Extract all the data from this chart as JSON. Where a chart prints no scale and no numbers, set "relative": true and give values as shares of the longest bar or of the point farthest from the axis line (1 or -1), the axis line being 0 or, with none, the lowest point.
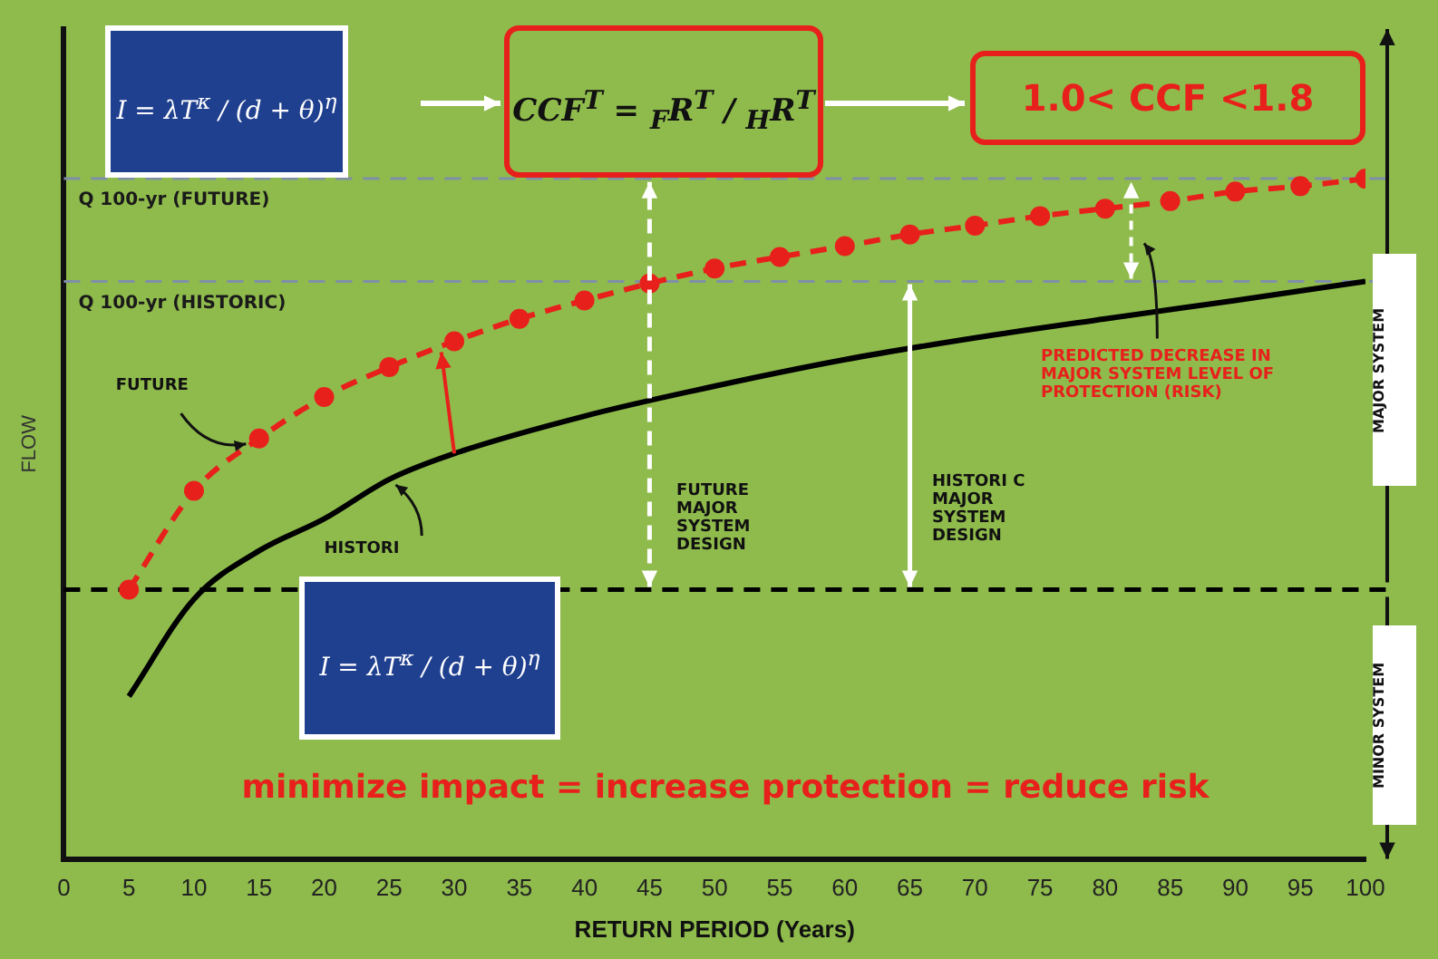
{
  "chart_data": {
    "type": "line",
    "relative": true,
    "xlabel": "RETURN PERIOD (Years)",
    "ylabel": "FLOW",
    "xlim": [
      0,
      100
    ],
    "xticks": [
      0,
      5,
      10,
      15,
      20,
      25,
      30,
      35,
      40,
      45,
      50,
      55,
      60,
      65,
      70,
      75,
      80,
      85,
      90,
      95,
      100
    ],
    "grid": false,
    "legend": false,
    "series": [
      {
        "name": "FUTURE",
        "color": "#e8201c",
        "marker": "circle",
        "line_style": "dashed",
        "x": [
          5,
          10,
          15,
          20,
          25,
          30,
          35,
          40,
          45,
          50,
          55,
          60,
          65,
          70,
          75,
          80,
          85,
          90,
          95,
          100
        ],
        "values": [
          0.396,
          0.541,
          0.618,
          0.679,
          0.723,
          0.761,
          0.794,
          0.821,
          0.846,
          0.868,
          0.885,
          0.901,
          0.918,
          0.931,
          0.945,
          0.956,
          0.967,
          0.981,
          0.989,
          1.0
        ]
      },
      {
        "name": "HISTORI",
        "color": "#000000",
        "marker": "none",
        "line_style": "solid",
        "x": [
          5,
          10,
          15,
          20,
          25,
          30,
          40,
          50,
          60,
          70,
          80,
          90,
          100
        ],
        "values": [
          0.239,
          0.382,
          0.453,
          0.5,
          0.558,
          0.596,
          0.651,
          0.695,
          0.734,
          0.766,
          0.794,
          0.821,
          0.849
        ]
      }
    ],
    "ref_lines": [
      {
        "axis": "y",
        "value": 1.0,
        "label": "Q 100-yr (FUTURE)",
        "color": "#7f8fa8",
        "line_style": "dashed"
      },
      {
        "axis": "y",
        "value": 0.849,
        "label": "Q 100-yr (HISTORIC)",
        "color": "#7f8fa8",
        "line_style": "dashed"
      },
      {
        "axis": "y",
        "value": 0.396,
        "label": null,
        "color": "#000000",
        "line_style": "dashed"
      }
    ],
    "annotations": [
      "I = λT$^{κ}$ / (d + θ)$^{η}$",
      "CCF$^{T}$ = $_{F}$R$^{T}$ / $_{H}$R$^{T}$",
      "1.0< CCF <1.8",
      "FUTURE MAJOR SYSTEM DESIGN",
      "HISTORI C MAJOR SYSTEM DESIGN",
      "PREDICTED DECREASE IN MAJOR SYSTEM LEVEL OF PROTECTION (RISK)",
      "MAJOR SYSTEM",
      "MINOR SYSTEM",
      "I = λT$^{κ}$ / (d + θ)$^{η}$",
      "minimize impact = increase protection = reduce risk"
    ]
  }
}
